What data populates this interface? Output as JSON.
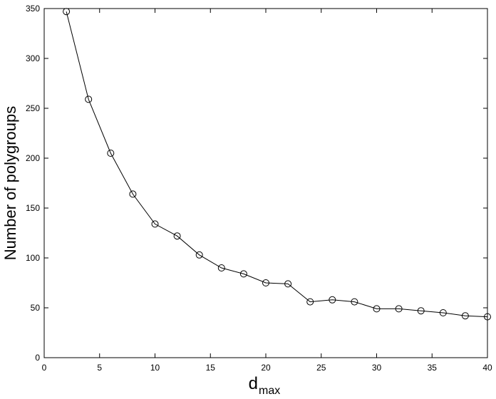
{
  "chart_data": {
    "type": "line",
    "xlabel": "d",
    "xlabel_sub": "max",
    "ylabel": "Number of polygroups",
    "x": [
      2,
      4,
      6,
      8,
      10,
      12,
      14,
      16,
      18,
      20,
      22,
      24,
      26,
      28,
      30,
      32,
      34,
      36,
      38,
      40
    ],
    "series": [
      {
        "color": "#000000",
        "values": [
          347,
          259,
          205,
          164,
          134,
          122,
          103,
          90,
          84,
          75,
          74,
          56,
          58,
          56,
          49,
          49,
          47,
          45,
          42,
          41
        ]
      }
    ],
    "xlim": [
      0,
      40
    ],
    "xticks": [
      0,
      5,
      10,
      15,
      20,
      25,
      30,
      35,
      40
    ],
    "ylim": [
      0,
      350
    ],
    "yticks": [
      0,
      50,
      100,
      150,
      200,
      250,
      300,
      350
    ],
    "grid": false,
    "marker": "circle"
  }
}
